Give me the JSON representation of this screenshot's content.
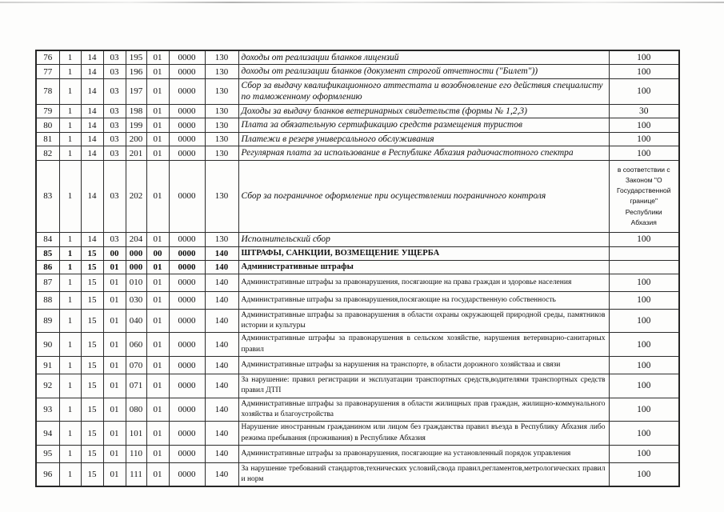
{
  "colors": {
    "paper": "#fdfdfc",
    "border": "#262626",
    "text": "#0f0f0f"
  },
  "table": {
    "rows": [
      {
        "num": "76",
        "codes": [
          "1",
          "14",
          "03",
          "195",
          "01",
          "0000",
          "130"
        ],
        "desc": "доходы от реализации бланков лицензий",
        "value": "100",
        "style": "italic"
      },
      {
        "num": "77",
        "codes": [
          "1",
          "14",
          "03",
          "196",
          "01",
          "0000",
          "130"
        ],
        "desc": "доходы от реализации бланков (документ строгой отчетности (\"Билет\"))",
        "value": "100",
        "style": "italic"
      },
      {
        "num": "78",
        "codes": [
          "1",
          "14",
          "03",
          "197",
          "01",
          "0000",
          "130"
        ],
        "desc": "Сбор за выдачу квалификационного аттестата и возобновление его действия специалисту по таможенному оформлению",
        "value": "100",
        "style": "italic"
      },
      {
        "num": "79",
        "codes": [
          "1",
          "14",
          "03",
          "198",
          "01",
          "0000",
          "130"
        ],
        "desc": "Доходы за выдачу бланков ветеринарных свидетельств (формы № 1,2,3)",
        "value": "30",
        "style": "italic"
      },
      {
        "num": "80",
        "codes": [
          "1",
          "14",
          "03",
          "199",
          "01",
          "0000",
          "130"
        ],
        "desc": "Плата за обязательную сертификацию средств размещения туристов",
        "value": "100",
        "style": "italic"
      },
      {
        "num": "81",
        "codes": [
          "1",
          "14",
          "03",
          "200",
          "01",
          "0000",
          "130"
        ],
        "desc": "Платежи в резерв универсального обслуживания",
        "value": "100",
        "style": "italic"
      },
      {
        "num": "82",
        "codes": [
          "1",
          "14",
          "03",
          "201",
          "01",
          "0000",
          "130"
        ],
        "desc": "Регулярная плата за использование в Республике Абхазия радиочастотного спектра",
        "value": "100",
        "style": "italic"
      },
      {
        "num": "83",
        "codes": [
          "1",
          "14",
          "03",
          "202",
          "01",
          "0000",
          "130"
        ],
        "desc": "Сбор за пограничное оформление при осуществлении пограничного контроля",
        "value": "в соответствии с Законом \"О Государственной границе\" Республики Абхазия",
        "style": "italic"
      },
      {
        "num": "84",
        "codes": [
          "1",
          "14",
          "03",
          "204",
          "01",
          "0000",
          "130"
        ],
        "desc": "Исполнительский сбор",
        "value": "100",
        "style": "italic"
      },
      {
        "num": "85",
        "codes": [
          "1",
          "15",
          "00",
          "000",
          "00",
          "0000",
          "140"
        ],
        "desc": "ШТРАФЫ, САНКЦИИ, ВОЗМЕЩЕНИЕ УЩЕРБА",
        "value": "",
        "style": "bold"
      },
      {
        "num": "86",
        "codes": [
          "1",
          "15",
          "01",
          "000",
          "01",
          "0000",
          "140"
        ],
        "desc": "Административные штрафы",
        "value": "",
        "style": "bold"
      },
      {
        "num": "87",
        "codes": [
          "1",
          "15",
          "01",
          "010",
          "01",
          "0000",
          "140"
        ],
        "desc": "Административные штрафы за правонарушения, посягающие на права граждан и здоровье населения",
        "value": "100",
        "style": "plain"
      },
      {
        "num": "88",
        "codes": [
          "1",
          "15",
          "01",
          "030",
          "01",
          "0000",
          "140"
        ],
        "desc": "Административные штрафы за правонарушения,посягающие на государственную собственность",
        "value": "100",
        "style": "plain"
      },
      {
        "num": "89",
        "codes": [
          "1",
          "15",
          "01",
          "040",
          "01",
          "0000",
          "140"
        ],
        "desc": "Административные штрафы за правонарушения в области охраны окружающей природной среды, памятников истории и культуры",
        "value": "100",
        "style": "plain"
      },
      {
        "num": "90",
        "codes": [
          "1",
          "15",
          "01",
          "060",
          "01",
          "0000",
          "140"
        ],
        "desc": "Административные штрафы за правонарушения в сельском хозяйстве, нарушения ветеринарно-санитарных правил",
        "value": "100",
        "style": "plain"
      },
      {
        "num": "91",
        "codes": [
          "1",
          "15",
          "01",
          "070",
          "01",
          "0000",
          "140"
        ],
        "desc": "Административные штрафы за нарушения на транспорте, в области дорожного хозяйстваа и связи",
        "value": "100",
        "style": "plain"
      },
      {
        "num": "92",
        "codes": [
          "1",
          "15",
          "01",
          "071",
          "01",
          "0000",
          "140"
        ],
        "desc": "За нарушение: правил регистрации и эксплуатации транспортных средств,водителями транспортных средств правил ДТП",
        "value": "100",
        "style": "plain"
      },
      {
        "num": "93",
        "codes": [
          "1",
          "15",
          "01",
          "080",
          "01",
          "0000",
          "140"
        ],
        "desc": "Административные штрафы за правонарушения в области жилищных прав граждан, жилищно-коммунального хозяйства и благоустройства",
        "value": "100",
        "style": "plain"
      },
      {
        "num": "94",
        "codes": [
          "1",
          "15",
          "01",
          "101",
          "01",
          "0000",
          "140"
        ],
        "desc": "Нарушение иностранным гражданином или лицом без гражданства правил въезда в Республику Абхазия либо режима пребывания (проживания) в Республике Абхазия",
        "value": "100",
        "style": "plain"
      },
      {
        "num": "95",
        "codes": [
          "1",
          "15",
          "01",
          "110",
          "01",
          "0000",
          "140"
        ],
        "desc": "Административные штрафы за правонарушения, посягающие на установленный порядок управления",
        "value": "100",
        "style": "plain"
      },
      {
        "num": "96",
        "codes": [
          "1",
          "15",
          "01",
          "111",
          "01",
          "0000",
          "140"
        ],
        "desc": "За нарушение требований стандартов,технических условий,свода правил,регламентов,метрологических правил и норм",
        "value": "100",
        "style": "plain"
      }
    ]
  }
}
